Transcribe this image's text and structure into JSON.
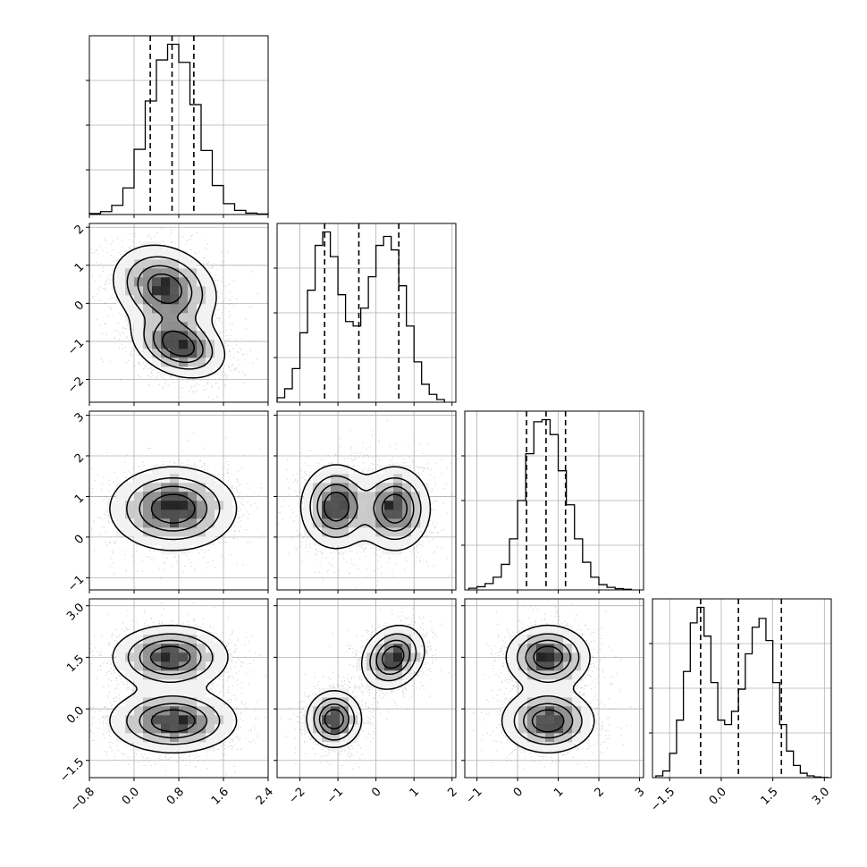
{
  "chart_data": {
    "type": "corner",
    "n_params": 4,
    "grid": true,
    "axis_ranges": [
      [
        -0.8,
        2.4
      ],
      [
        -2.6,
        2.1
      ],
      [
        -1.3,
        3.1
      ],
      [
        -2.0,
        3.2
      ]
    ],
    "tick_values": [
      [
        -0.8,
        0.0,
        0.8,
        1.6,
        2.4
      ],
      [
        -2,
        -1,
        0,
        1,
        2
      ],
      [
        -1,
        0,
        1,
        2,
        3
      ],
      [
        -1.5,
        0.0,
        1.5,
        3.0
      ]
    ],
    "tick_labels": [
      [
        "−0.8",
        "0.0",
        "0.8",
        "1.6",
        "2.4"
      ],
      [
        "−2",
        "−1",
        "0",
        "1",
        "2"
      ],
      [
        "−1",
        "0",
        "1",
        "2",
        "3"
      ],
      [
        "−1.5",
        "0.0",
        "1.5",
        "3.0"
      ]
    ],
    "quantiles": [
      [
        0.29,
        0.68,
        1.07
      ],
      [
        -1.35,
        -0.45,
        0.6
      ],
      [
        0.22,
        0.7,
        1.18
      ],
      [
        -0.6,
        0.5,
        1.75
      ]
    ],
    "histograms": [
      {
        "bin_edges": [
          -0.8,
          -0.6,
          -0.4,
          -0.2,
          0.0,
          0.2,
          0.4,
          0.6,
          0.8,
          1.0,
          1.2,
          1.4,
          1.6,
          1.8,
          2.0,
          2.2,
          2.4
        ],
        "counts": [
          4,
          12,
          38,
          110,
          270,
          470,
          640,
          705,
          630,
          455,
          265,
          120,
          45,
          17,
          6,
          2
        ]
      },
      {
        "bin_edges": [
          -2.6,
          -2.4,
          -2.2,
          -2.0,
          -1.8,
          -1.6,
          -1.4,
          -1.2,
          -1.0,
          -0.8,
          -0.6,
          -0.4,
          -0.2,
          0.0,
          0.2,
          0.4,
          0.6,
          0.8,
          1.0,
          1.2,
          1.4,
          1.6,
          1.8
        ],
        "counts": [
          20,
          60,
          150,
          310,
          500,
          700,
          760,
          650,
          480,
          360,
          340,
          420,
          560,
          700,
          740,
          680,
          520,
          340,
          180,
          80,
          35,
          12
        ]
      },
      {
        "bin_edges": [
          -1.2,
          -1.0,
          -0.8,
          -0.6,
          -0.4,
          -0.2,
          0.0,
          0.2,
          0.4,
          0.6,
          0.8,
          1.0,
          1.2,
          1.4,
          1.6,
          1.8,
          2.0,
          2.2,
          2.4,
          2.6,
          2.8
        ],
        "counts": [
          8,
          15,
          30,
          60,
          120,
          240,
          420,
          640,
          790,
          800,
          730,
          560,
          400,
          240,
          130,
          60,
          25,
          12,
          6,
          3
        ]
      },
      {
        "bin_edges": [
          -1.9,
          -1.7,
          -1.5,
          -1.3,
          -1.1,
          -0.9,
          -0.7,
          -0.5,
          -0.3,
          -0.1,
          0.1,
          0.3,
          0.5,
          0.7,
          0.9,
          1.1,
          1.3,
          1.5,
          1.7,
          1.9,
          2.1,
          2.3,
          2.5,
          2.7,
          2.9,
          3.1
        ],
        "counts": [
          8,
          30,
          110,
          260,
          480,
          700,
          770,
          640,
          430,
          260,
          240,
          300,
          400,
          560,
          680,
          720,
          620,
          430,
          240,
          120,
          55,
          20,
          8,
          3,
          1
        ]
      }
    ],
    "modes_2d": [
      {
        "x": 0,
        "y": 1,
        "peaks": [
          [
            0.55,
            0.4,
            0.45,
            0.55,
            -0.2
          ],
          [
            0.8,
            -1.1,
            0.4,
            0.42,
            -0.3
          ]
        ]
      },
      {
        "x": 0,
        "y": 2,
        "peaks": [
          [
            0.7,
            0.7,
            0.55,
            0.5,
            0
          ]
        ]
      },
      {
        "x": 1,
        "y": 2,
        "peaks": [
          [
            -1.05,
            0.75,
            0.45,
            0.5,
            0
          ],
          [
            0.5,
            0.7,
            0.45,
            0.5,
            0
          ]
        ]
      },
      {
        "x": 0,
        "y": 3,
        "peaks": [
          [
            0.65,
            1.5,
            0.5,
            0.45,
            0
          ],
          [
            0.7,
            -0.35,
            0.55,
            0.45,
            0
          ]
        ]
      },
      {
        "x": 1,
        "y": 3,
        "peaks": [
          [
            -1.1,
            -0.3,
            0.35,
            0.4,
            0
          ],
          [
            0.45,
            1.5,
            0.4,
            0.45,
            0.2
          ]
        ]
      },
      {
        "x": 2,
        "y": 3,
        "peaks": [
          [
            0.75,
            1.5,
            0.5,
            0.45,
            0
          ],
          [
            0.75,
            -0.35,
            0.55,
            0.45,
            0
          ]
        ]
      }
    ]
  }
}
